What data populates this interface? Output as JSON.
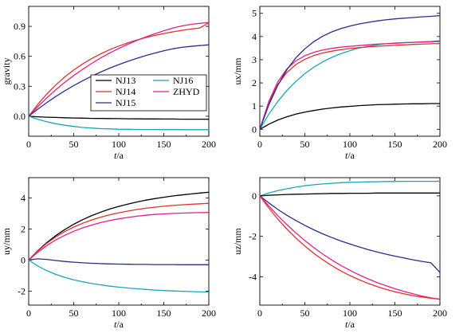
{
  "chart_data": [
    {
      "type": "line",
      "title": "",
      "xlabel": "t/a",
      "ylabel": "gravity",
      "xlim": [
        0,
        200
      ],
      "ylim": [
        -0.2,
        1.1
      ],
      "xticks": [
        0,
        50,
        100,
        150,
        200
      ],
      "yticks": [
        0.0,
        0.3,
        0.6,
        0.9
      ],
      "yticklabels": [
        "0.0",
        "0.3",
        "0.6",
        "0.9"
      ],
      "legend": {
        "placement": "lower-right-center",
        "entries": [
          "NJ13",
          "NJ16",
          "NJ14",
          "ZHYD",
          "NJ15"
        ]
      },
      "x": [
        0,
        10,
        20,
        30,
        40,
        50,
        60,
        70,
        80,
        90,
        100,
        110,
        120,
        130,
        140,
        150,
        160,
        170,
        180,
        190,
        200
      ],
      "series": [
        {
          "name": "NJ13",
          "color": "#000000",
          "values": [
            0,
            -0.005,
            -0.009,
            -0.012,
            -0.015,
            -0.017,
            -0.019,
            -0.021,
            -0.022,
            -0.023,
            -0.024,
            -0.025,
            -0.026,
            -0.027,
            -0.027,
            -0.028,
            -0.028,
            -0.029,
            -0.029,
            -0.029,
            -0.03
          ]
        },
        {
          "name": "NJ16",
          "color": "#1aa6b7",
          "values": [
            0,
            -0.03,
            -0.055,
            -0.075,
            -0.09,
            -0.102,
            -0.112,
            -0.119,
            -0.124,
            -0.127,
            -0.13,
            -0.131,
            -0.132,
            -0.133,
            -0.133,
            -0.134,
            -0.134,
            -0.134,
            -0.135,
            -0.135,
            -0.135
          ]
        },
        {
          "name": "NJ14",
          "color": "#e0302a",
          "values": [
            0,
            0.118,
            0.222,
            0.313,
            0.393,
            0.463,
            0.524,
            0.578,
            0.625,
            0.667,
            0.703,
            0.735,
            0.763,
            0.788,
            0.809,
            0.828,
            0.845,
            0.86,
            0.873,
            0.884,
            0.935
          ]
        },
        {
          "name": "ZHYD",
          "color": "#e0208a",
          "values": [
            0,
            0.095,
            0.183,
            0.264,
            0.339,
            0.408,
            0.471,
            0.53,
            0.584,
            0.633,
            0.679,
            0.72,
            0.759,
            0.794,
            0.826,
            0.856,
            0.883,
            0.905,
            0.92,
            0.93,
            0.94
          ]
        },
        {
          "name": "NJ15",
          "color": "#2c2c8c",
          "values": [
            0,
            0.07,
            0.136,
            0.197,
            0.254,
            0.307,
            0.356,
            0.401,
            0.443,
            0.482,
            0.517,
            0.55,
            0.58,
            0.608,
            0.633,
            0.656,
            0.675,
            0.69,
            0.7,
            0.708,
            0.715
          ]
        }
      ]
    },
    {
      "type": "line",
      "title": "",
      "xlabel": "t/a",
      "ylabel": "ux/mm",
      "xlim": [
        0,
        200
      ],
      "ylim": [
        -0.3,
        5.3
      ],
      "xticks": [
        0,
        50,
        100,
        150,
        200
      ],
      "yticks": [
        0,
        1,
        2,
        3,
        4,
        5
      ],
      "yticklabels": [
        "0",
        "1",
        "2",
        "3",
        "4",
        "5"
      ],
      "x": [
        0,
        10,
        20,
        30,
        40,
        50,
        60,
        70,
        80,
        90,
        100,
        110,
        120,
        130,
        140,
        150,
        160,
        170,
        180,
        190,
        200
      ],
      "series": [
        {
          "color": "#000000",
          "values": [
            0,
            0.22,
            0.4,
            0.54,
            0.65,
            0.74,
            0.81,
            0.87,
            0.92,
            0.96,
            0.99,
            1.02,
            1.04,
            1.06,
            1.07,
            1.08,
            1.09,
            1.1,
            1.1,
            1.11,
            1.11
          ]
        },
        {
          "color": "#1aa6b7",
          "values": [
            0,
            0.65,
            1.2,
            1.67,
            2.06,
            2.4,
            2.68,
            2.91,
            3.1,
            3.26,
            3.39,
            3.5,
            3.58,
            3.64,
            3.69,
            3.72,
            3.74,
            3.75,
            3.76,
            3.77,
            3.78
          ]
        },
        {
          "color": "#e0302a",
          "values": [
            0,
            1.15,
            1.93,
            2.45,
            2.79,
            3.02,
            3.18,
            3.29,
            3.37,
            3.43,
            3.48,
            3.52,
            3.55,
            3.58,
            3.6,
            3.62,
            3.64,
            3.66,
            3.67,
            3.69,
            3.7
          ]
        },
        {
          "color": "#e0208a",
          "values": [
            0,
            1.2,
            2.05,
            2.6,
            2.95,
            3.17,
            3.32,
            3.42,
            3.49,
            3.54,
            3.58,
            3.61,
            3.64,
            3.67,
            3.69,
            3.71,
            3.73,
            3.75,
            3.77,
            3.78,
            3.82
          ]
        },
        {
          "color": "#2c2c8c",
          "values": [
            0,
            1.05,
            1.9,
            2.57,
            3.08,
            3.47,
            3.78,
            4.02,
            4.2,
            4.34,
            4.45,
            4.54,
            4.61,
            4.67,
            4.72,
            4.76,
            4.79,
            4.82,
            4.85,
            4.87,
            4.9
          ]
        }
      ]
    },
    {
      "type": "line",
      "title": "",
      "xlabel": "t/a",
      "ylabel": "uy/mm",
      "xlim": [
        0,
        200
      ],
      "ylim": [
        -2.9,
        5.3
      ],
      "xticks": [
        0,
        50,
        100,
        150,
        200
      ],
      "yticks": [
        -2,
        0,
        2,
        4
      ],
      "yticklabels": [
        "-2",
        "0",
        "2",
        "4"
      ],
      "x": [
        0,
        10,
        20,
        30,
        40,
        50,
        60,
        70,
        80,
        90,
        100,
        110,
        120,
        130,
        140,
        150,
        160,
        170,
        180,
        190,
        200
      ],
      "series": [
        {
          "color": "#000000",
          "values": [
            0,
            0.6,
            1.12,
            1.57,
            1.96,
            2.3,
            2.6,
            2.86,
            3.08,
            3.28,
            3.45,
            3.6,
            3.73,
            3.85,
            3.95,
            4.04,
            4.12,
            4.19,
            4.25,
            4.31,
            4.36
          ]
        },
        {
          "color": "#e0302a",
          "values": [
            0,
            0.58,
            1.07,
            1.48,
            1.83,
            2.12,
            2.37,
            2.58,
            2.76,
            2.91,
            3.04,
            3.15,
            3.25,
            3.33,
            3.4,
            3.46,
            3.51,
            3.55,
            3.59,
            3.62,
            3.65
          ]
        },
        {
          "color": "#e0208a",
          "values": [
            0,
            0.5,
            0.93,
            1.29,
            1.59,
            1.85,
            2.07,
            2.25,
            2.41,
            2.54,
            2.65,
            2.74,
            2.82,
            2.88,
            2.93,
            2.97,
            3.0,
            3.02,
            3.04,
            3.05,
            3.06
          ]
        },
        {
          "color": "#2c2c8c",
          "values": [
            0,
            0.08,
            0.04,
            -0.03,
            -0.09,
            -0.14,
            -0.18,
            -0.21,
            -0.23,
            -0.25,
            -0.26,
            -0.27,
            -0.28,
            -0.28,
            -0.29,
            -0.29,
            -0.29,
            -0.3,
            -0.3,
            -0.3,
            -0.3
          ]
        },
        {
          "color": "#1aa6b7",
          "values": [
            0,
            -0.38,
            -0.68,
            -0.92,
            -1.11,
            -1.27,
            -1.4,
            -1.51,
            -1.6,
            -1.68,
            -1.74,
            -1.8,
            -1.85,
            -1.89,
            -1.93,
            -1.96,
            -1.99,
            -2.01,
            -2.03,
            -2.05,
            -2.06
          ]
        }
      ]
    },
    {
      "type": "line",
      "title": "",
      "xlabel": "t/a",
      "ylabel": "uz/mm",
      "xlim": [
        0,
        200
      ],
      "ylim": [
        -5.4,
        0.9
      ],
      "xticks": [
        0,
        50,
        100,
        150,
        200
      ],
      "yticks": [
        -4,
        -2,
        0
      ],
      "yticklabels": [
        "-4",
        "-2",
        "0"
      ],
      "x": [
        0,
        10,
        20,
        30,
        40,
        50,
        60,
        70,
        80,
        90,
        100,
        110,
        120,
        130,
        140,
        150,
        160,
        170,
        180,
        190,
        200
      ],
      "series": [
        {
          "color": "#1aa6b7",
          "values": [
            0,
            0.14,
            0.26,
            0.35,
            0.43,
            0.5,
            0.55,
            0.59,
            0.62,
            0.65,
            0.67,
            0.68,
            0.69,
            0.7,
            0.71,
            0.71,
            0.72,
            0.72,
            0.72,
            0.72,
            0.72
          ]
        },
        {
          "color": "#000000",
          "values": [
            0,
            0.03,
            0.05,
            0.07,
            0.08,
            0.09,
            0.1,
            0.11,
            0.12,
            0.12,
            0.13,
            0.13,
            0.13,
            0.14,
            0.14,
            0.14,
            0.14,
            0.14,
            0.14,
            0.14,
            0.14
          ]
        },
        {
          "color": "#2c2c8c",
          "values": [
            0,
            -0.35,
            -0.67,
            -0.96,
            -1.22,
            -1.46,
            -1.68,
            -1.88,
            -2.06,
            -2.23,
            -2.38,
            -2.52,
            -2.65,
            -2.77,
            -2.88,
            -2.98,
            -3.07,
            -3.16,
            -3.24,
            -3.31,
            -3.78
          ]
        },
        {
          "color": "#e0208a",
          "values": [
            0,
            -0.5,
            -0.98,
            -1.42,
            -1.83,
            -2.21,
            -2.56,
            -2.88,
            -3.17,
            -3.44,
            -3.68,
            -3.9,
            -4.1,
            -4.28,
            -4.44,
            -4.59,
            -4.72,
            -4.84,
            -4.95,
            -5.04,
            -5.12
          ]
        },
        {
          "color": "#e0302a",
          "values": [
            0,
            -0.6,
            -1.15,
            -1.64,
            -2.08,
            -2.48,
            -2.84,
            -3.16,
            -3.45,
            -3.71,
            -3.94,
            -4.14,
            -4.32,
            -4.48,
            -4.62,
            -4.74,
            -4.84,
            -4.93,
            -5.0,
            -5.06,
            -5.1
          ]
        }
      ]
    }
  ]
}
